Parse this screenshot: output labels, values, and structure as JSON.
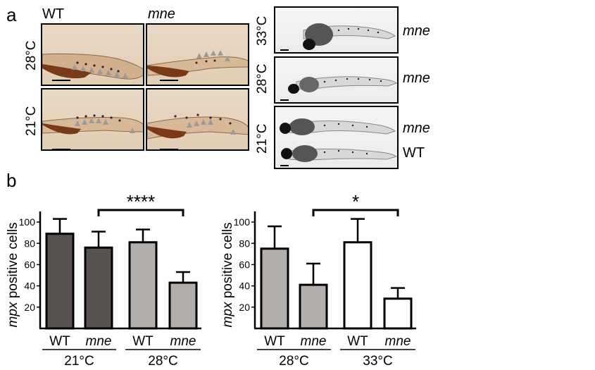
{
  "panel_a": {
    "letter": "a",
    "col_labels": [
      "WT",
      "mne"
    ],
    "row_labels": [
      "28°C",
      "21°C"
    ],
    "right_temps": [
      "33°C",
      "28°C",
      "21°C"
    ],
    "right_genotypes": [
      "mne",
      "mne",
      "mne",
      "WT"
    ]
  },
  "panel_b": {
    "letter": "b"
  },
  "chart_data": [
    {
      "type": "bar",
      "ylabel_italic": "mpx",
      "ylabel_rest": " positive cells",
      "yticks": [
        20,
        40,
        60,
        80,
        100
      ],
      "ylim": [
        0,
        110
      ],
      "categories": [
        "WT",
        "mne",
        "WT",
        "mne"
      ],
      "groups": [
        "21°C",
        "28°C"
      ],
      "values": [
        89,
        76,
        81,
        43
      ],
      "errors": [
        14,
        15,
        12,
        10
      ],
      "fills": [
        "#57524f",
        "#57524f",
        "#b2aeab",
        "#b2aeab"
      ],
      "significance": {
        "label": "****",
        "from": 1,
        "to": 3
      }
    },
    {
      "type": "bar",
      "ylabel_italic": "mpx",
      "ylabel_rest": " positive cells",
      "yticks": [
        20,
        40,
        60,
        80,
        100
      ],
      "ylim": [
        0,
        110
      ],
      "categories": [
        "WT",
        "mne",
        "WT",
        "mne"
      ],
      "groups": [
        "28°C",
        "33°C"
      ],
      "values": [
        75,
        41,
        81,
        28
      ],
      "errors": [
        21,
        20,
        22,
        10
      ],
      "fills": [
        "#b2aeab",
        "#b2aeab",
        "#ffffff",
        "#ffffff"
      ],
      "significance": {
        "label": "*",
        "from": 1,
        "to": 3
      }
    }
  ]
}
